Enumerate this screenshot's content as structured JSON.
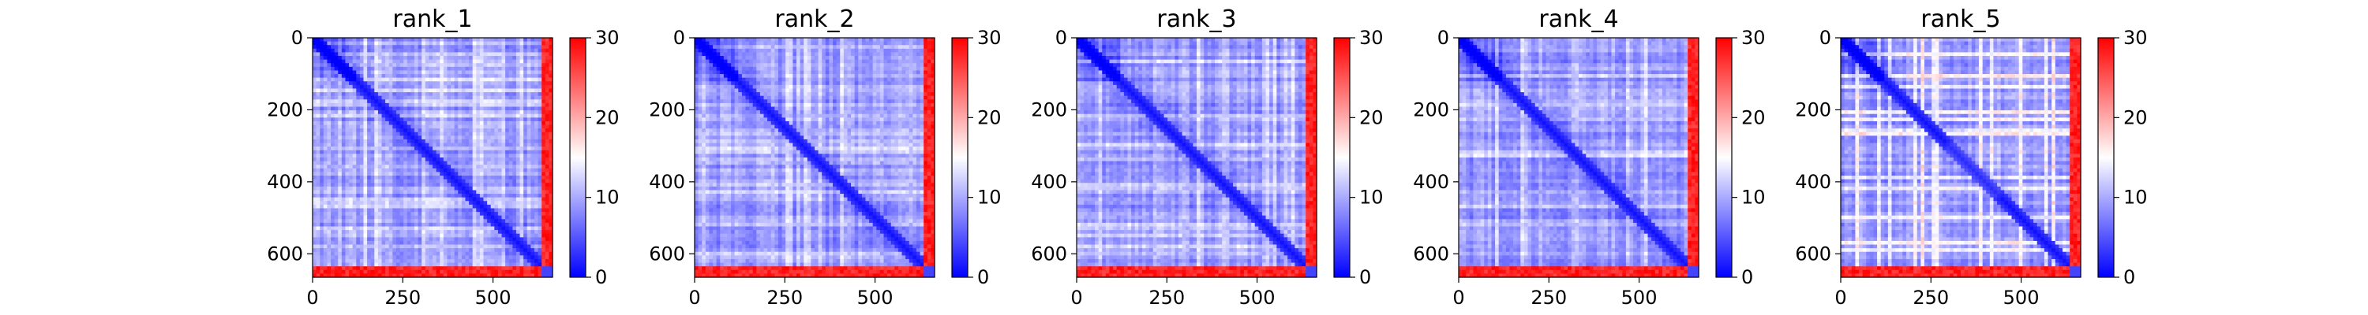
{
  "chart_data": [
    {
      "type": "heatmap",
      "title": "rank_1",
      "x_ticks": [
        "0",
        "250",
        "500"
      ],
      "y_ticks": [
        "0",
        "200",
        "400",
        "600"
      ],
      "xlim": [
        0,
        665
      ],
      "ylim": [
        665,
        0
      ],
      "colorbar": {
        "range": [
          0,
          30
        ],
        "ticks": [
          "0",
          "10",
          "20",
          "30"
        ],
        "colors": [
          "#0000ff",
          "#ffffff",
          "#ff0000"
        ]
      }
    },
    {
      "type": "heatmap",
      "title": "rank_2",
      "x_ticks": [
        "0",
        "250",
        "500"
      ],
      "y_ticks": [
        "0",
        "200",
        "400",
        "600"
      ],
      "xlim": [
        0,
        665
      ],
      "ylim": [
        665,
        0
      ],
      "colorbar": {
        "range": [
          0,
          30
        ],
        "ticks": [
          "0",
          "10",
          "20",
          "30"
        ],
        "colors": [
          "#0000ff",
          "#ffffff",
          "#ff0000"
        ]
      }
    },
    {
      "type": "heatmap",
      "title": "rank_3",
      "x_ticks": [
        "0",
        "250",
        "500"
      ],
      "y_ticks": [
        "0",
        "200",
        "400",
        "600"
      ],
      "xlim": [
        0,
        665
      ],
      "ylim": [
        665,
        0
      ],
      "colorbar": {
        "range": [
          0,
          30
        ],
        "ticks": [
          "0",
          "10",
          "20",
          "30"
        ],
        "colors": [
          "#0000ff",
          "#ffffff",
          "#ff0000"
        ]
      }
    },
    {
      "type": "heatmap",
      "title": "rank_4",
      "x_ticks": [
        "0",
        "250",
        "500"
      ],
      "y_ticks": [
        "0",
        "200",
        "400",
        "600"
      ],
      "xlim": [
        0,
        665
      ],
      "ylim": [
        665,
        0
      ],
      "colorbar": {
        "range": [
          0,
          30
        ],
        "ticks": [
          "0",
          "10",
          "20",
          "30"
        ],
        "colors": [
          "#0000ff",
          "#ffffff",
          "#ff0000"
        ]
      }
    },
    {
      "type": "heatmap",
      "title": "rank_5",
      "x_ticks": [
        "0",
        "250",
        "500"
      ],
      "y_ticks": [
        "0",
        "200",
        "400",
        "600"
      ],
      "xlim": [
        0,
        665
      ],
      "ylim": [
        665,
        0
      ],
      "colorbar": {
        "range": [
          0,
          30
        ],
        "ticks": [
          "0",
          "10",
          "20",
          "30"
        ],
        "colors": [
          "#0000ff",
          "#ffffff",
          "#ff0000"
        ]
      }
    }
  ]
}
